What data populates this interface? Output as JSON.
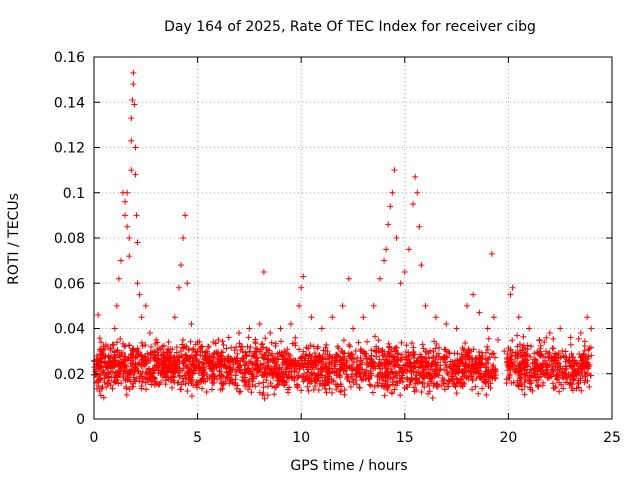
{
  "chart_data": {
    "type": "scatter",
    "title": "Day 164 of 2025, Rate Of TEC Index for receiver cibg",
    "xlabel": "GPS time / hours",
    "ylabel": "ROTI / TECUs",
    "xlim": [
      0,
      25
    ],
    "ylim": [
      0,
      0.16
    ],
    "xticks": [
      0,
      5,
      10,
      15,
      20,
      25
    ],
    "xtick_labels": [
      "0",
      "5",
      "10",
      "15",
      "20",
      "25"
    ],
    "yticks": [
      0,
      0.02,
      0.04,
      0.06,
      0.08,
      0.1,
      0.12,
      0.14,
      0.16
    ],
    "ytick_labels": [
      "0",
      "0.02",
      "0.04",
      "0.06",
      "0.08",
      "0.1",
      "0.12",
      "0.14",
      "0.16"
    ],
    "grid": true,
    "marker": "+",
    "color": "#ff0000",
    "series": [
      {
        "name": "ROTI",
        "x": [
          0.1,
          0.2,
          0.3,
          0.5,
          0.7,
          0.9,
          1.0,
          1.1,
          1.2,
          1.3,
          1.4,
          1.5,
          1.5,
          1.6,
          1.6,
          1.7,
          1.7,
          1.8,
          1.8,
          1.8,
          1.85,
          1.9,
          1.9,
          1.95,
          2.0,
          2.0,
          2.05,
          2.1,
          2.1,
          2.2,
          2.3,
          2.5,
          2.7,
          3.0,
          3.3,
          3.6,
          3.9,
          4.1,
          4.2,
          4.3,
          4.4,
          4.5,
          4.7,
          5.0,
          5.5,
          6.0,
          6.5,
          7.0,
          7.5,
          8.0,
          8.2,
          8.5,
          9.0,
          9.5,
          9.9,
          10.0,
          10.1,
          10.5,
          11.0,
          11.5,
          12.0,
          12.3,
          12.5,
          13.0,
          13.5,
          13.8,
          14.0,
          14.1,
          14.2,
          14.3,
          14.4,
          14.5,
          14.6,
          14.8,
          15.0,
          15.2,
          15.4,
          15.5,
          15.6,
          15.7,
          15.8,
          16.0,
          16.5,
          17.0,
          17.5,
          18.0,
          18.3,
          18.6,
          19.0,
          19.2,
          19.3,
          19.5,
          19.8,
          20.1,
          20.2,
          20.5,
          21.0,
          21.5,
          22.0,
          22.5,
          23.0,
          23.5,
          23.8,
          24.0
        ],
        "y": [
          0.022,
          0.046,
          0.03,
          0.025,
          0.028,
          0.033,
          0.04,
          0.05,
          0.062,
          0.07,
          0.1,
          0.09,
          0.096,
          0.085,
          0.1,
          0.072,
          0.08,
          0.11,
          0.123,
          0.133,
          0.141,
          0.153,
          0.148,
          0.139,
          0.12,
          0.108,
          0.09,
          0.078,
          0.06,
          0.055,
          0.045,
          0.05,
          0.038,
          0.035,
          0.032,
          0.034,
          0.045,
          0.058,
          0.068,
          0.08,
          0.09,
          0.06,
          0.042,
          0.03,
          0.032,
          0.035,
          0.036,
          0.038,
          0.04,
          0.042,
          0.065,
          0.038,
          0.04,
          0.042,
          0.05,
          0.058,
          0.063,
          0.045,
          0.04,
          0.045,
          0.05,
          0.062,
          0.04,
          0.045,
          0.05,
          0.062,
          0.07,
          0.075,
          0.086,
          0.094,
          0.1,
          0.11,
          0.08,
          0.06,
          0.065,
          0.075,
          0.095,
          0.107,
          0.1,
          0.085,
          0.068,
          0.05,
          0.045,
          0.042,
          0.04,
          0.05,
          0.055,
          0.047,
          0.04,
          0.073,
          0.045,
          0.035,
          0.03,
          0.055,
          0.058,
          0.045,
          0.04,
          0.035,
          0.038,
          0.04,
          0.036,
          0.038,
          0.045,
          0.04
        ]
      }
    ],
    "background_band": {
      "description": "dense scatter band of ROTI values",
      "x_range": [
        0.0,
        24.0
      ],
      "y_range": [
        0.008,
        0.035
      ],
      "gap_x_range": [
        19.4,
        19.9
      ]
    }
  }
}
